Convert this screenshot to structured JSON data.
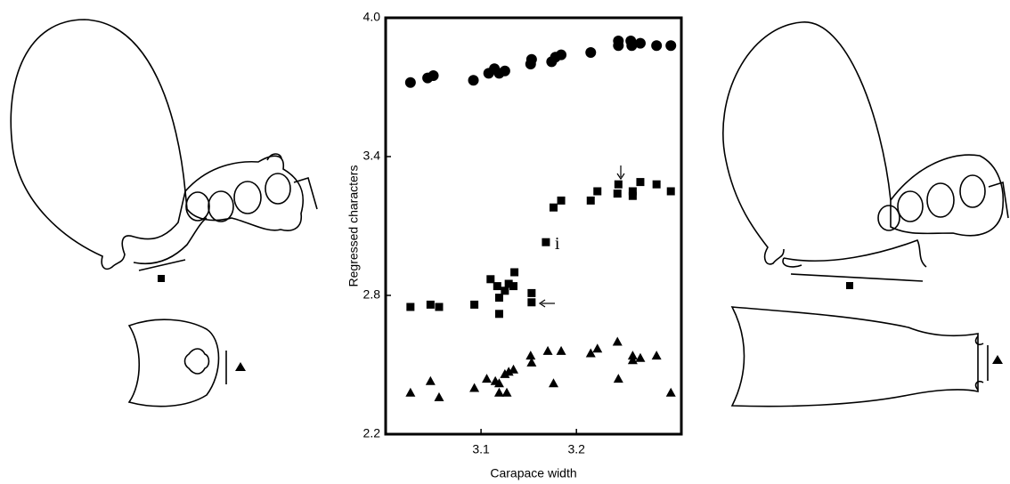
{
  "chart_data": {
    "type": "scatter",
    "x_label": "Carapace width",
    "y_label": "Regressed characters",
    "xlim": [
      3.0,
      3.31
    ],
    "ylim": [
      2.2,
      4.0
    ],
    "xticks": [
      3.1,
      3.2
    ],
    "yticks": [
      2.2,
      2.8,
      3.4,
      {
        "value": 4.0,
        "label": "4.0"
      }
    ],
    "grid": false,
    "annotations": [
      "i"
    ],
    "series": [
      {
        "marker": "circle",
        "color": "#000000",
        "x": [
          3.026,
          3.044,
          3.05,
          3.092,
          3.108,
          3.114,
          3.119,
          3.125,
          3.152,
          3.153,
          3.174,
          3.178,
          3.184,
          3.215,
          3.244,
          3.244,
          3.257,
          3.258,
          3.267,
          3.284,
          3.299
        ],
        "values": [
          3.72,
          3.74,
          3.75,
          3.73,
          3.76,
          3.78,
          3.76,
          3.77,
          3.8,
          3.82,
          3.81,
          3.83,
          3.84,
          3.85,
          3.88,
          3.9,
          3.9,
          3.88,
          3.89,
          3.88,
          3.88
        ]
      },
      {
        "marker": "square",
        "color": "#000000",
        "x": [
          3.026,
          3.047,
          3.056,
          3.093,
          3.11,
          3.117,
          3.119,
          3.119,
          3.125,
          3.129,
          3.134,
          3.135,
          3.153,
          3.153,
          3.168,
          3.176,
          3.184,
          3.215,
          3.222,
          3.243,
          3.244,
          3.259,
          3.259,
          3.267,
          3.284,
          3.299
        ],
        "values": [
          2.75,
          2.76,
          2.75,
          2.76,
          2.87,
          2.84,
          2.79,
          2.72,
          2.82,
          2.85,
          2.84,
          2.9,
          2.81,
          2.77,
          3.03,
          3.18,
          3.21,
          3.21,
          3.25,
          3.24,
          3.28,
          3.25,
          3.23,
          3.29,
          3.28,
          3.25
        ]
      },
      {
        "marker": "triangle",
        "color": "#000000",
        "x": [
          3.026,
          3.047,
          3.056,
          3.093,
          3.106,
          3.115,
          3.119,
          3.119,
          3.125,
          3.127,
          3.129,
          3.134,
          3.152,
          3.153,
          3.17,
          3.176,
          3.184,
          3.215,
          3.222,
          3.243,
          3.244,
          3.259,
          3.259,
          3.267,
          3.284,
          3.299
        ],
        "values": [
          2.38,
          2.43,
          2.36,
          2.4,
          2.44,
          2.43,
          2.42,
          2.38,
          2.46,
          2.38,
          2.47,
          2.48,
          2.54,
          2.51,
          2.56,
          2.42,
          2.56,
          2.55,
          2.57,
          2.6,
          2.44,
          2.54,
          2.52,
          2.53,
          2.54,
          2.38
        ]
      }
    ]
  }
}
